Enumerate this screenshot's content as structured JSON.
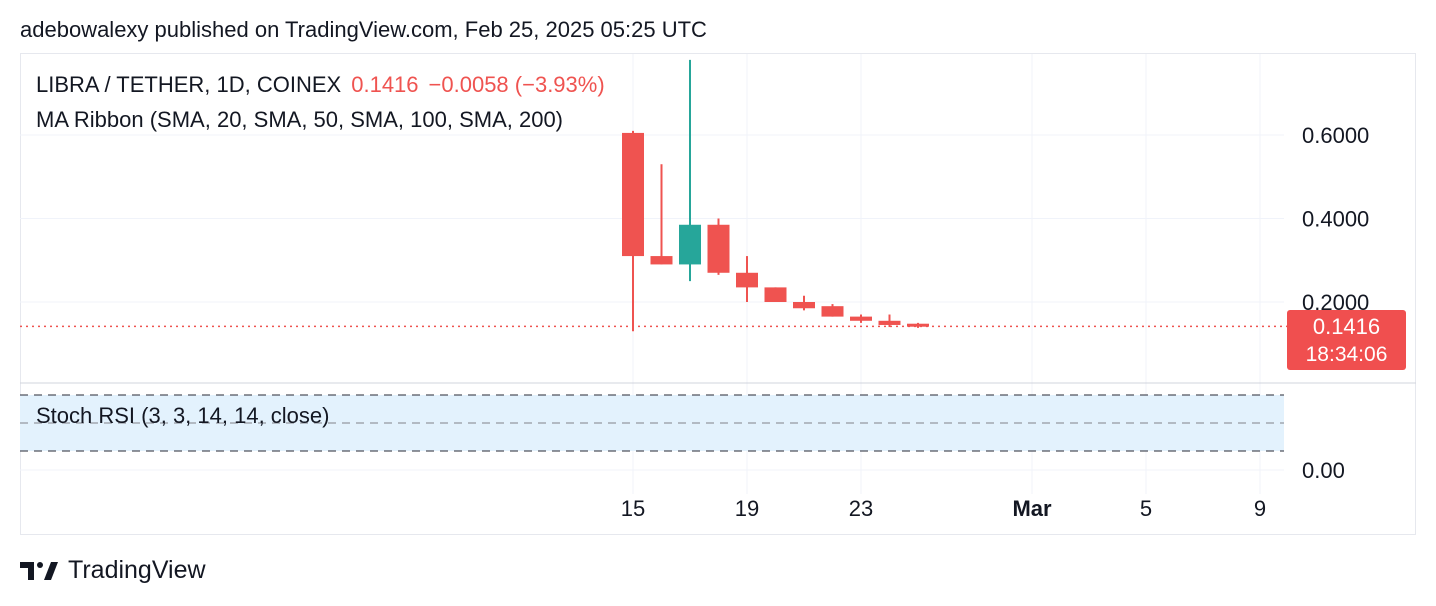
{
  "header": {
    "publish_text": "adebowalexy published on TradingView.com, Feb 25, 2025 05:25 UTC"
  },
  "legend": {
    "symbol": "LIBRA / TETHER, 1D, COINEX",
    "last_price": "0.1416",
    "change": "−0.0058 (−3.93%)",
    "indicator": "MA Ribbon (SMA, 20, SMA, 50, SMA, 100, SMA, 200)",
    "oscillator": "Stoch RSI (3, 3, 14, 14, close)"
  },
  "price_tag": {
    "price": "0.1416",
    "countdown": "18:34:06"
  },
  "footer": {
    "brand": "TradingView"
  },
  "colors": {
    "bear": "#ef5350",
    "bull": "#26a69a",
    "grid": "#f0f3fa",
    "stoch_band": "#e3f2fd"
  },
  "chart_data": {
    "type": "candlestick",
    "price_ticks": [
      "0.6000",
      "0.4000",
      "0.2000"
    ],
    "price_tick_values": [
      0.6,
      0.4,
      0.2
    ],
    "oscillator_ticks": [
      "0.00"
    ],
    "x_ticks": [
      {
        "label": "15",
        "day": 15
      },
      {
        "label": "19",
        "day": 19
      },
      {
        "label": "23",
        "day": 23
      },
      {
        "label": "Mar",
        "day": 29,
        "bold": true
      },
      {
        "label": "5",
        "day": 33
      },
      {
        "label": "9",
        "day": 37
      }
    ],
    "candles": [
      {
        "day": 15,
        "open": 0.605,
        "high": 0.61,
        "low": 0.13,
        "close": 0.31
      },
      {
        "day": 16,
        "open": 0.31,
        "high": 0.53,
        "low": 0.29,
        "close": 0.29
      },
      {
        "day": 17,
        "open": 0.29,
        "high": 0.78,
        "low": 0.25,
        "close": 0.385
      },
      {
        "day": 18,
        "open": 0.385,
        "high": 0.4,
        "low": 0.265,
        "close": 0.27
      },
      {
        "day": 19,
        "open": 0.27,
        "high": 0.31,
        "low": 0.2,
        "close": 0.235
      },
      {
        "day": 20,
        "open": 0.235,
        "high": 0.235,
        "low": 0.2,
        "close": 0.2
      },
      {
        "day": 21,
        "open": 0.2,
        "high": 0.215,
        "low": 0.18,
        "close": 0.185
      },
      {
        "day": 22,
        "open": 0.19,
        "high": 0.195,
        "low": 0.165,
        "close": 0.165
      },
      {
        "day": 23,
        "open": 0.165,
        "high": 0.17,
        "low": 0.15,
        "close": 0.155
      },
      {
        "day": 24,
        "open": 0.155,
        "high": 0.17,
        "low": 0.14,
        "close": 0.145
      },
      {
        "day": 25,
        "open": 0.148,
        "high": 0.15,
        "low": 0.138,
        "close": 0.1416
      }
    ],
    "last_price": 0.1416
  }
}
